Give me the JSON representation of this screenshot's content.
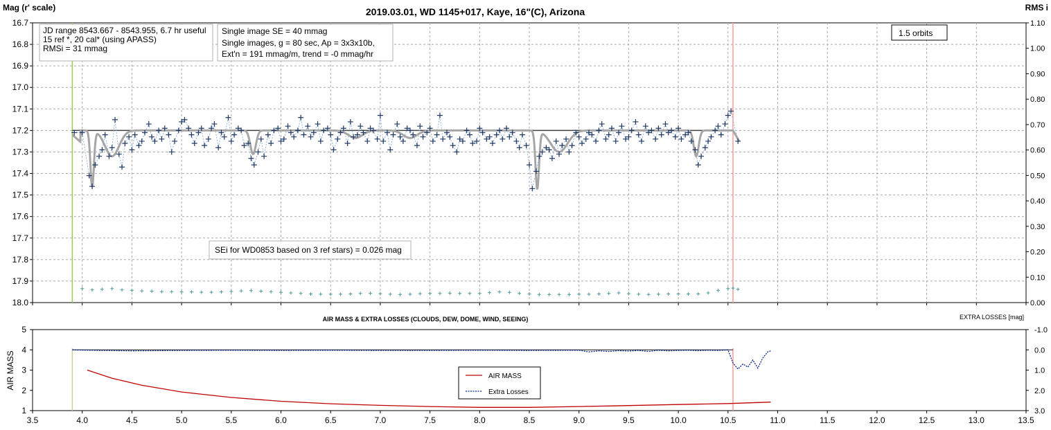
{
  "chart_data": [
    {
      "type": "scatter",
      "title": "2019.03.01, WD 1145+017, Kaye, 16\"(C), Arizona",
      "ylabel_left": "Mag (r' scale)",
      "ylabel_right": "RMS i",
      "xlim": [
        3.5,
        13.5
      ],
      "ylim": [
        16.7,
        18.0
      ],
      "ylim_right": [
        0.0,
        1.1
      ],
      "y_inverted": true,
      "grid": true,
      "x_ticks": [
        "3.5",
        "4.0",
        "4.5",
        "5.0",
        "5.5",
        "6.0",
        "6.5",
        "7.0",
        "7.5",
        "8.0",
        "8.5",
        "9.0",
        "9.5",
        "10.0",
        "10.5",
        "11.0",
        "11.5",
        "12.0",
        "12.5",
        "13.0",
        "13.5"
      ],
      "y_ticks": [
        "16.7",
        "16.8",
        "16.9",
        "17.0",
        "17.1",
        "17.2",
        "17.3",
        "17.4",
        "17.5",
        "17.6",
        "17.7",
        "17.8",
        "17.9",
        "18.0"
      ],
      "y_ticks_right": [
        "1.10",
        "1.00",
        "0.90",
        "0.80",
        "0.70",
        "0.60",
        "0.50",
        "0.40",
        "0.30",
        "0.20",
        "0.10",
        "0.00"
      ],
      "vertical_lines": [
        {
          "x": 3.9,
          "color": "#92d050"
        },
        {
          "x": 10.55,
          "color": "#ff9999"
        }
      ],
      "reference_line": {
        "x": [
          3.9,
          10.55
        ],
        "y": 17.2,
        "color": "#404040"
      },
      "annotations": [
        {
          "lines": [
            "JD range 8543.667 - 8543.955, 6.7 hr useful",
            "15 ref *, 20 cal* (using APASS)",
            "RMSi = 31 mmag"
          ]
        },
        {
          "lines": [
            "Single image SE = 40 mmag",
            "Single images, g = 80 sec, Ap = 3x3x10b,",
            "Ext'n = 191 mmag/m, trend = -0 mmag/hr"
          ]
        },
        {
          "lines": [
            "1.5 orbits"
          ]
        },
        {
          "lines": [
            "SEi for WD0853 based on 3 ref stars) = 0.026 mag"
          ]
        }
      ],
      "colors": {
        "points": "#1f3864",
        "model": "#a6a6a6",
        "rms": "#4f9a9a"
      },
      "model_dips": [
        {
          "x": 4.1,
          "depth": 0.26,
          "width": 0.025
        },
        {
          "x": 4.3,
          "depth": 0.12,
          "width": 0.1
        },
        {
          "x": 5.72,
          "depth": 0.11,
          "width": 0.04
        },
        {
          "x": 6.75,
          "depth": 0.035,
          "width": 0.1
        },
        {
          "x": 7.3,
          "depth": 0.035,
          "width": 0.1
        },
        {
          "x": 8.58,
          "depth": 0.27,
          "width": 0.025
        },
        {
          "x": 8.8,
          "depth": 0.1,
          "width": 0.12
        },
        {
          "x": 10.18,
          "depth": 0.12,
          "width": 0.035
        }
      ],
      "series": [
        {
          "name": "observations",
          "x": [
            3.92,
            4.0,
            4.07,
            4.1,
            4.13,
            4.17,
            4.2,
            4.23,
            4.27,
            4.3,
            4.33,
            4.37,
            4.4,
            4.43,
            4.47,
            4.5,
            4.53,
            4.57,
            4.6,
            4.63,
            4.67,
            4.7,
            4.73,
            4.77,
            4.8,
            4.83,
            4.87,
            4.9,
            4.93,
            4.97,
            5.0,
            5.03,
            5.07,
            5.1,
            5.13,
            5.17,
            5.2,
            5.23,
            5.27,
            5.3,
            5.33,
            5.37,
            5.4,
            5.43,
            5.47,
            5.5,
            5.53,
            5.57,
            5.6,
            5.63,
            5.67,
            5.7,
            5.73,
            5.77,
            5.8,
            5.83,
            5.87,
            5.9,
            5.93,
            5.97,
            6.0,
            6.03,
            6.07,
            6.1,
            6.13,
            6.17,
            6.2,
            6.23,
            6.27,
            6.3,
            6.33,
            6.37,
            6.4,
            6.43,
            6.47,
            6.5,
            6.53,
            6.57,
            6.6,
            6.63,
            6.67,
            6.7,
            6.73,
            6.77,
            6.8,
            6.83,
            6.87,
            6.9,
            6.93,
            6.97,
            7.0,
            7.03,
            7.07,
            7.1,
            7.13,
            7.17,
            7.2,
            7.23,
            7.27,
            7.3,
            7.33,
            7.37,
            7.4,
            7.43,
            7.47,
            7.5,
            7.53,
            7.57,
            7.6,
            7.63,
            7.67,
            7.7,
            7.73,
            7.77,
            7.8,
            7.83,
            7.87,
            7.9,
            7.93,
            7.97,
            8.0,
            8.03,
            8.07,
            8.1,
            8.13,
            8.17,
            8.2,
            8.23,
            8.27,
            8.3,
            8.33,
            8.37,
            8.4,
            8.43,
            8.47,
            8.5,
            8.53,
            8.57,
            8.6,
            8.63,
            8.67,
            8.7,
            8.73,
            8.77,
            8.8,
            8.83,
            8.87,
            8.9,
            8.93,
            8.97,
            9.0,
            9.03,
            9.07,
            9.1,
            9.13,
            9.17,
            9.2,
            9.23,
            9.27,
            9.3,
            9.33,
            9.37,
            9.4,
            9.43,
            9.47,
            9.5,
            9.53,
            9.57,
            9.6,
            9.63,
            9.67,
            9.7,
            9.73,
            9.77,
            9.8,
            9.83,
            9.87,
            9.9,
            9.93,
            9.97,
            10.0,
            10.03,
            10.07,
            10.1,
            10.13,
            10.17,
            10.2,
            10.23,
            10.27,
            10.3,
            10.33,
            10.37,
            10.4,
            10.43,
            10.47,
            10.5,
            10.53,
            10.6
          ],
          "y": [
            17.21,
            17.21,
            17.41,
            17.46,
            17.36,
            17.32,
            17.29,
            17.22,
            17.32,
            17.28,
            17.15,
            17.31,
            17.37,
            17.26,
            17.23,
            17.29,
            17.22,
            17.27,
            17.25,
            17.21,
            17.17,
            17.23,
            17.25,
            17.2,
            17.24,
            17.19,
            17.22,
            17.3,
            17.25,
            17.2,
            17.16,
            17.15,
            17.19,
            17.22,
            17.26,
            17.21,
            17.19,
            17.27,
            17.24,
            17.19,
            17.17,
            17.28,
            17.21,
            17.23,
            17.14,
            17.25,
            17.22,
            17.19,
            17.2,
            17.27,
            17.26,
            17.33,
            17.36,
            17.3,
            17.24,
            17.32,
            17.22,
            17.26,
            17.2,
            17.19,
            17.25,
            17.24,
            17.18,
            17.21,
            17.23,
            17.2,
            17.14,
            17.22,
            17.18,
            17.23,
            17.21,
            17.17,
            17.25,
            17.2,
            17.19,
            17.22,
            17.29,
            17.24,
            17.21,
            17.19,
            17.26,
            17.16,
            17.23,
            17.22,
            17.18,
            17.21,
            17.25,
            17.19,
            17.2,
            17.24,
            17.13,
            17.25,
            17.21,
            17.29,
            17.22,
            17.17,
            17.23,
            17.25,
            17.19,
            17.2,
            17.22,
            17.27,
            17.18,
            17.23,
            17.21,
            17.19,
            17.25,
            17.22,
            17.13,
            17.24,
            17.21,
            17.23,
            17.27,
            17.3,
            17.24,
            17.25,
            17.2,
            17.22,
            17.26,
            17.25,
            17.19,
            17.21,
            17.24,
            17.23,
            17.26,
            17.22,
            17.2,
            17.24,
            17.19,
            17.23,
            17.21,
            17.25,
            17.28,
            17.22,
            17.27,
            17.36,
            17.47,
            17.39,
            17.32,
            17.3,
            17.28,
            17.29,
            17.33,
            17.25,
            17.31,
            17.27,
            17.24,
            17.3,
            17.27,
            17.21,
            17.23,
            17.26,
            17.24,
            17.21,
            17.22,
            17.25,
            17.2,
            17.17,
            17.24,
            17.22,
            17.19,
            17.25,
            17.21,
            17.18,
            17.24,
            17.23,
            17.2,
            17.16,
            17.22,
            17.25,
            17.18,
            17.21,
            17.2,
            17.24,
            17.19,
            17.22,
            17.17,
            17.21,
            17.2,
            17.23,
            17.19,
            17.24,
            17.22,
            17.21,
            17.25,
            17.29,
            17.36,
            17.32,
            17.28,
            17.25,
            17.23,
            17.2,
            17.18,
            17.22,
            17.17,
            17.13,
            17.11,
            17.25
          ]
        },
        {
          "name": "rms",
          "x": [
            4.0,
            4.1,
            4.2,
            4.3,
            4.4,
            4.5,
            4.6,
            4.7,
            4.8,
            4.9,
            5.0,
            5.1,
            5.2,
            5.3,
            5.4,
            5.5,
            5.6,
            5.7,
            5.8,
            5.9,
            6.0,
            6.1,
            6.2,
            6.3,
            6.4,
            6.5,
            6.6,
            6.7,
            6.8,
            6.9,
            7.0,
            7.1,
            7.2,
            7.3,
            7.4,
            7.5,
            7.6,
            7.7,
            7.8,
            7.9,
            8.0,
            8.1,
            8.2,
            8.3,
            8.4,
            8.5,
            8.6,
            8.7,
            8.8,
            8.9,
            9.0,
            9.1,
            9.2,
            9.3,
            9.4,
            9.5,
            9.6,
            9.7,
            9.8,
            9.9,
            10.0,
            10.1,
            10.2,
            10.3,
            10.4,
            10.5,
            10.55,
            10.6
          ],
          "y": [
            0.055,
            0.05,
            0.052,
            0.055,
            0.05,
            0.048,
            0.046,
            0.045,
            0.043,
            0.043,
            0.042,
            0.042,
            0.041,
            0.041,
            0.042,
            0.044,
            0.046,
            0.047,
            0.045,
            0.043,
            0.04,
            0.038,
            0.036,
            0.034,
            0.033,
            0.033,
            0.033,
            0.034,
            0.036,
            0.036,
            0.035,
            0.033,
            0.032,
            0.033,
            0.035,
            0.036,
            0.036,
            0.037,
            0.036,
            0.036,
            0.036,
            0.039,
            0.042,
            0.04,
            0.036,
            0.034,
            0.032,
            0.032,
            0.032,
            0.032,
            0.033,
            0.033,
            0.034,
            0.036,
            0.038,
            0.035,
            0.033,
            0.032,
            0.033,
            0.034,
            0.034,
            0.034,
            0.034,
            0.038,
            0.048,
            0.055,
            0.057,
            0.052
          ]
        }
      ]
    },
    {
      "type": "line",
      "title": "AIR MASS & EXTRA LOSSES (CLOUDS, DEW, DOME, WIND, SEEING)",
      "ylabel": "AIR MASS",
      "ylabel_right": "EXTRA LOSSES [mag]",
      "xlim": [
        3.5,
        13.5
      ],
      "ylim": [
        1,
        5
      ],
      "ylim_right": [
        3.0,
        -1.0
      ],
      "x_ticks": [
        "3.5",
        "4.0",
        "4.5",
        "5.0",
        "5.5",
        "6.0",
        "6.5",
        "7.0",
        "7.5",
        "8.0",
        "8.5",
        "9.0",
        "9.5",
        "10.0",
        "10.5",
        "11.0",
        "11.5",
        "12.0",
        "12.5",
        "13.0",
        "13.5"
      ],
      "y_ticks": [
        "1",
        "2",
        "3",
        "4",
        "5"
      ],
      "y_ticks_right": [
        "-1.0",
        "0.0",
        "1.0",
        "2.0",
        "3.0"
      ],
      "legend": {
        "position": "inside-center",
        "entries": [
          "AIR MASS",
          "Extra Losses"
        ]
      },
      "vertical_lines": [
        {
          "x": 3.9,
          "color": "#c4d79b"
        },
        {
          "x": 10.55,
          "color": "#ff9999"
        }
      ],
      "colors": {
        "air_mass": "#c00000",
        "extra_losses": "#002090"
      },
      "reference_line": {
        "x": [
          3.9,
          10.55
        ],
        "y": 4.0,
        "color": "#404040"
      },
      "series": [
        {
          "name": "AIR MASS",
          "x": [
            4.05,
            4.3,
            4.6,
            5.0,
            5.5,
            6.0,
            6.5,
            7.0,
            7.5,
            8.0,
            8.5,
            9.0,
            9.5,
            10.0,
            10.5,
            10.93
          ],
          "y": [
            3.0,
            2.6,
            2.25,
            1.92,
            1.65,
            1.46,
            1.34,
            1.26,
            1.2,
            1.16,
            1.16,
            1.2,
            1.25,
            1.3,
            1.35,
            1.42
          ]
        },
        {
          "name": "Extra Losses",
          "x": [
            3.9,
            4.2,
            4.5,
            5.0,
            5.5,
            6.0,
            6.5,
            7.0,
            7.5,
            8.0,
            8.5,
            9.0,
            9.1,
            9.2,
            9.3,
            9.4,
            9.5,
            9.6,
            9.7,
            9.8,
            9.9,
            10.0,
            10.1,
            10.2,
            10.3,
            10.4,
            10.5,
            10.55,
            10.6,
            10.65,
            10.7,
            10.75,
            10.8,
            10.85,
            10.9,
            10.93
          ],
          "y": [
            0.0,
            0.03,
            0.05,
            0.03,
            0.02,
            0.03,
            0.02,
            0.03,
            0.03,
            0.02,
            0.03,
            0.02,
            0.1,
            0.05,
            0.08,
            0.04,
            0.06,
            0.03,
            0.08,
            0.02,
            0.05,
            0.03,
            0.02,
            0.04,
            0.02,
            0.03,
            0.0,
            0.65,
            0.95,
            0.7,
            0.85,
            0.5,
            0.9,
            0.4,
            0.1,
            0.05
          ]
        }
      ]
    }
  ]
}
